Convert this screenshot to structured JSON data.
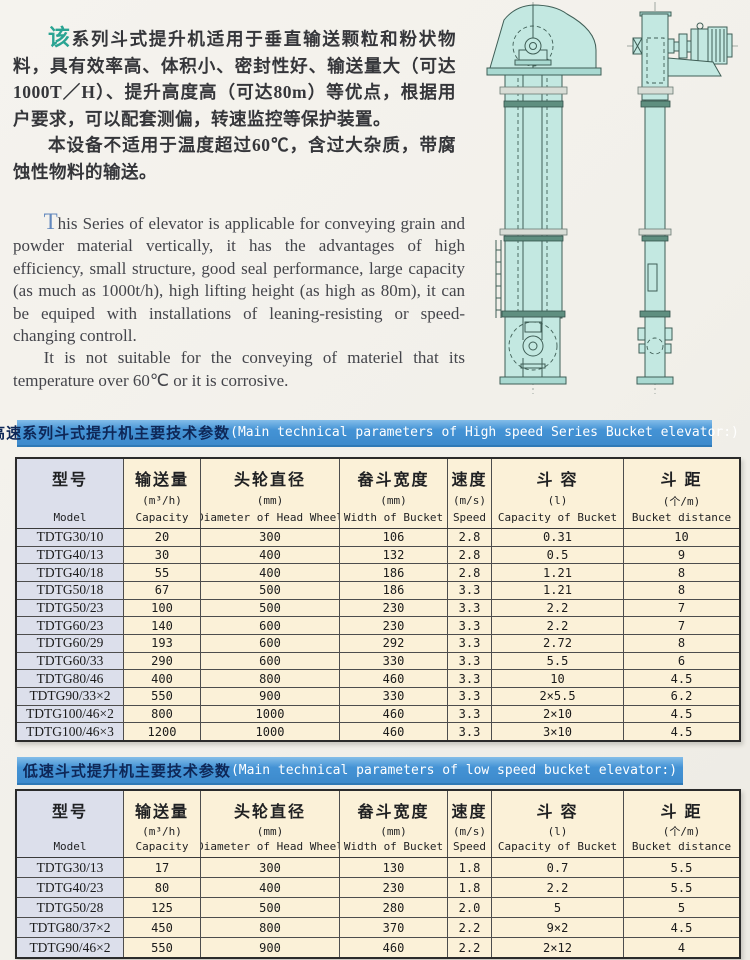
{
  "intro_cn": {
    "drop_char": "该",
    "para1_rest": "系列斗式提升机适用于垂直输送颗粒和粉状物料，具有效率高、体积小、密封性好、输送量大（可达1000T／H）、提升高度高（可达80m）等优点，根据用户要求，可以配套测偏，转速监控等保护装置。",
    "para2": "本设备不适用于温度超过60℃，含过大杂质，带腐蚀性物料的输送。"
  },
  "intro_en": {
    "drop_char": "T",
    "para1_rest": "his Series of elevator is applicable for conveying grain and powder material vertically, it has the advantages of high efficiency, small structure, good seal performance, large capacity (as much as 1000t/h), high lifting height (as high as 80m), it can be equiped with installations of leaning-resisting or speed-changing controll.",
    "para2": "It is not suitable for the conveying of materiel that its temperature over 60℃ or it is corrosive."
  },
  "drawings": {
    "front_view": "bucket-elevator-front-view",
    "side_view": "bucket-elevator-side-view",
    "fill_color": "#c3e8e1",
    "stroke_color": "#3f5e56"
  },
  "colors": {
    "banner_blue": "#4493d5",
    "banner_text_cn": "#0e2757",
    "banner_text_en": "#ffffff",
    "table_cream": "#fbf1d8",
    "model_column": "#dcdfeb",
    "drop_cap_cn": "#2aa493",
    "drop_cap_en": "#6288bd"
  },
  "tables": [
    {
      "banner_cn": "高速系列斗式提升机主要技术参数",
      "banner_en": "(Main technical parameters of High speed Series Bucket elevator:)",
      "columns": [
        {
          "cn": "型号",
          "sub": "",
          "en": "Model"
        },
        {
          "cn": "输送量",
          "sub": "(m³/h)",
          "en": "Capacity"
        },
        {
          "cn": "头轮直径",
          "sub": "(mm)",
          "en": "Diameter of Head Wheel"
        },
        {
          "cn": "畚斗宽度",
          "sub": "(mm)",
          "en": "Width of Bucket"
        },
        {
          "cn": "速度",
          "sub": "(m/s)",
          "en": "Speed"
        },
        {
          "cn": "斗 容",
          "sub": "(l)",
          "en": "Capacity of Bucket"
        },
        {
          "cn": "斗 距",
          "sub": "(个/m)",
          "en": "Bucket distance"
        }
      ],
      "rows": [
        [
          "TDTG30/10",
          "20",
          "300",
          "106",
          "2.8",
          "0.31",
          "10"
        ],
        [
          "TDTG40/13",
          "30",
          "400",
          "132",
          "2.8",
          "0.5",
          "9"
        ],
        [
          "TDTG40/18",
          "55",
          "400",
          "186",
          "2.8",
          "1.21",
          "8"
        ],
        [
          "TDTG50/18",
          "67",
          "500",
          "186",
          "3.3",
          "1.21",
          "8"
        ],
        [
          "TDTG50/23",
          "100",
          "500",
          "230",
          "3.3",
          "2.2",
          "7"
        ],
        [
          "TDTG60/23",
          "140",
          "600",
          "230",
          "3.3",
          "2.2",
          "7"
        ],
        [
          "TDTG60/29",
          "193",
          "600",
          "292",
          "3.3",
          "2.72",
          "8"
        ],
        [
          "TDTG60/33",
          "290",
          "600",
          "330",
          "3.3",
          "5.5",
          "6"
        ],
        [
          "TDTG80/46",
          "400",
          "800",
          "460",
          "3.3",
          "10",
          "4.5"
        ],
        [
          "TDTG90/33×2",
          "550",
          "900",
          "330",
          "3.3",
          "2×5.5",
          "6.2"
        ],
        [
          "TDTG100/46×2",
          "800",
          "1000",
          "460",
          "3.3",
          "2×10",
          "4.5"
        ],
        [
          "TDTG100/46×3",
          "1200",
          "1000",
          "460",
          "3.3",
          "3×10",
          "4.5"
        ]
      ]
    },
    {
      "banner_cn": "低速斗式提升机主要技术参数 ",
      "banner_en": "(Main technical parameters of low speed bucket elevator:)",
      "columns": [
        {
          "cn": "型号",
          "sub": "",
          "en": "Model"
        },
        {
          "cn": "输送量",
          "sub": "(m³/h)",
          "en": "Capacity"
        },
        {
          "cn": "头轮直径",
          "sub": "(mm)",
          "en": "Diameter of Head Wheel"
        },
        {
          "cn": "畚斗宽度",
          "sub": "(mm)",
          "en": "Width of Bucket"
        },
        {
          "cn": "速度",
          "sub": "(m/s)",
          "en": "Speed"
        },
        {
          "cn": "斗 容",
          "sub": "(l)",
          "en": "Capacity of Bucket"
        },
        {
          "cn": "斗 距",
          "sub": "(个/m)",
          "en": "Bucket distance"
        }
      ],
      "rows": [
        [
          "TDTG30/13",
          "17",
          "300",
          "130",
          "1.8",
          "0.7",
          "5.5"
        ],
        [
          "TDTG40/23",
          "80",
          "400",
          "230",
          "1.8",
          "2.2",
          "5.5"
        ],
        [
          "TDTG50/28",
          "125",
          "500",
          "280",
          "2.0",
          "5",
          "5"
        ],
        [
          "TDTG80/37×2",
          "450",
          "800",
          "370",
          "2.2",
          "9×2",
          "4.5"
        ],
        [
          "TDTG90/46×2",
          "550",
          "900",
          "460",
          "2.2",
          "2×12",
          "4"
        ]
      ]
    }
  ]
}
